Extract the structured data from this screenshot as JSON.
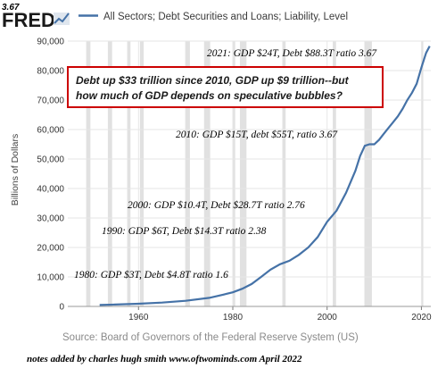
{
  "header": {
    "corner_label": "3.67",
    "logo_text": "FRED",
    "logo_icon": "line-chart-icon"
  },
  "colors": {
    "series": "#4572a7",
    "recession": "#e1e1e1",
    "callout_border": "#cc0000",
    "grid": "#e6e6e6"
  },
  "chart_data": {
    "type": "line",
    "title": "",
    "xlabel": "",
    "ylabel": "Billions of Dollars",
    "xlim": [
      1945,
      2022
    ],
    "ylim": [
      0,
      90000
    ],
    "x_ticks": [
      1960,
      1980,
      2000,
      2020
    ],
    "y_ticks": [
      {
        "value": 0,
        "label": "0"
      },
      {
        "value": 10000,
        "label": "10,000"
      },
      {
        "value": 20000,
        "label": "20,000"
      },
      {
        "value": 30000,
        "label": "30,000"
      },
      {
        "value": 40000,
        "label": "40,000"
      },
      {
        "value": 50000,
        "label": "50,000"
      },
      {
        "value": 60000,
        "label": "60,000"
      },
      {
        "value": 70000,
        "label": "70,000"
      },
      {
        "value": 80000,
        "label": "80,000"
      },
      {
        "value": 90000,
        "label": "90,000"
      }
    ],
    "grid": true,
    "legend_position": "top-left",
    "series": [
      {
        "name": "All Sectors; Debt Securities and Loans; Liability, Level",
        "x": [
          1951.75,
          1955,
          1960,
          1965,
          1970,
          1975,
          1978,
          1980,
          1982,
          1984,
          1986,
          1988,
          1990,
          1992,
          1994,
          1996,
          1998,
          2000,
          2002,
          2004,
          2006,
          2007,
          2008,
          2009,
          2010,
          2011,
          2012,
          2013,
          2014,
          2015,
          2016,
          2017,
          2018,
          2019,
          2020,
          2021,
          2021.75
        ],
        "y": [
          500,
          650,
          900,
          1300,
          1900,
          2900,
          4000,
          4800,
          6000,
          7600,
          10000,
          12500,
          14300,
          15500,
          17500,
          20000,
          23500,
          28700,
          32500,
          38500,
          46000,
          51000,
          54500,
          55000,
          55000,
          56500,
          58500,
          60500,
          62500,
          64500,
          67000,
          70000,
          72500,
          75500,
          81000,
          86000,
          88300
        ]
      }
    ],
    "recessions": [
      [
        1948.9,
        1949.8
      ],
      [
        1953.5,
        1954.4
      ],
      [
        1957.6,
        1958.3
      ],
      [
        1960.3,
        1961.1
      ],
      [
        1969.9,
        1970.9
      ],
      [
        1973.9,
        1975.2
      ],
      [
        1980.0,
        1980.5
      ],
      [
        1981.5,
        1982.9
      ],
      [
        1990.5,
        1991.2
      ],
      [
        2001.2,
        2001.9
      ],
      [
        2007.9,
        2009.5
      ],
      [
        2020.1,
        2020.4
      ]
    ],
    "annotations": [
      {
        "text": "2021: GDP $24T, Debt $88.3T ratio  3.67"
      },
      {
        "text": "2010: GDP $15T, debt $55T,  ratio 3.67"
      },
      {
        "text": "2000: GDP $10.4T, Debt $28.7T ratio 2.76"
      },
      {
        "text": "1990: GDP $6T, Debt $14.3T ratio 2.38"
      },
      {
        "text": "1980: GDP $3T, Debt $4.8T ratio 1.6"
      }
    ],
    "callout": {
      "line1": "Debt up $33 trillion since 2010, GDP up $9 trillion--but",
      "line2": "how much of GDP depends on speculative bubbles?"
    },
    "source": "Source: Board of Governors of the Federal Reserve System (US)"
  },
  "footer": {
    "note": "notes added by charles hugh smith   www.oftwominds.com   April 2022"
  }
}
